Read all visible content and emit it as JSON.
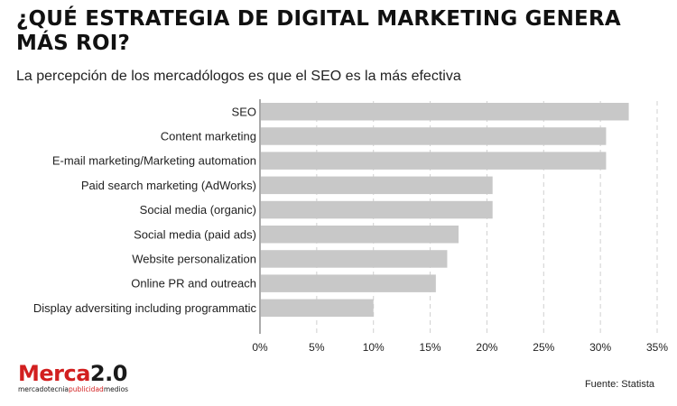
{
  "header": {
    "title": "¿QUÉ ESTRATEGIA DE DIGITAL MARKETING GENERA MÁS ROI?",
    "subtitle": "La percepción de los mercadólogos es que el SEO es la más efectiva"
  },
  "footer": {
    "logo_brand": "Merca",
    "logo_number": "2.0",
    "logo_tag_part1": "mercadotecnia",
    "logo_tag_part2": "publicidad",
    "logo_tag_part3": "medios",
    "source": "Fuente: Statista"
  },
  "colors": {
    "bar": "#c8c8c8",
    "grid": "#d0d0d0",
    "text": "#222222",
    "brand": "#d21f1f"
  },
  "chart_data": {
    "type": "bar",
    "orientation": "horizontal",
    "categories": [
      "SEO",
      "Content marketing",
      "E-mail marketing/Marketing automation",
      "Paid search marketing (AdWorks)",
      "Social media (organic)",
      "Social media (paid ads)",
      "Website personalization",
      "Online PR and outreach",
      "Display adversiting including programmatic"
    ],
    "values": [
      32.5,
      30.5,
      30.5,
      20.5,
      20.5,
      17.5,
      16.5,
      15.5,
      10.0
    ],
    "xlim": [
      0,
      35
    ],
    "xticks": [
      "0%",
      "5%",
      "10%",
      "15%",
      "20%",
      "25%",
      "30%",
      "35%"
    ],
    "grid": "vertical dashed",
    "title": "",
    "xlabel": "",
    "ylabel": ""
  }
}
